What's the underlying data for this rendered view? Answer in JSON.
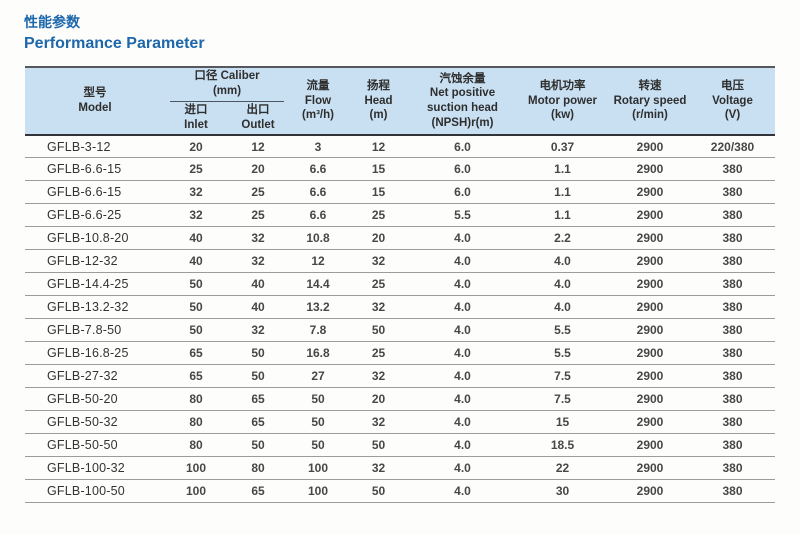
{
  "page": {
    "title_zh": "性能参数",
    "title_en": "Performance Parameter",
    "accent_color": "#1d67ab",
    "header_bg": "#c9e0f2"
  },
  "table": {
    "header": {
      "model": {
        "zh": "型号",
        "en": "Model"
      },
      "caliber": {
        "label": "口径 Caliber",
        "unit": "(mm)"
      },
      "inlet": {
        "zh": "进口",
        "en": "Inlet"
      },
      "outlet": {
        "zh": "出口",
        "en": "Outlet"
      },
      "flow": {
        "zh": "流量",
        "en": "Flow",
        "unit": "(m³/h)"
      },
      "head": {
        "zh": "扬程",
        "en": "Head",
        "unit": "(m)"
      },
      "npsh": {
        "zh": "汽蚀余量",
        "en1": "Net positive",
        "en2": "suction head",
        "unit": "(NPSH)r(m)"
      },
      "motor": {
        "zh": "电机功率",
        "en": "Motor power",
        "unit": "(kw)"
      },
      "speed": {
        "zh": "转速",
        "en": "Rotary speed",
        "unit": "(r/min)"
      },
      "voltage": {
        "zh": "电压",
        "en": "Voltage",
        "unit": "(V)"
      }
    },
    "column_keys": [
      "model",
      "inlet",
      "outlet",
      "flow",
      "head",
      "npsh",
      "motor-power",
      "rotary-speed",
      "voltage"
    ],
    "rows": [
      [
        "GFLB-3-12",
        "20",
        "12",
        "3",
        "12",
        "6.0",
        "0.37",
        "2900",
        "220/380"
      ],
      [
        "GFLB-6.6-15",
        "25",
        "20",
        "6.6",
        "15",
        "6.0",
        "1.1",
        "2900",
        "380"
      ],
      [
        "GFLB-6.6-15",
        "32",
        "25",
        "6.6",
        "15",
        "6.0",
        "1.1",
        "2900",
        "380"
      ],
      [
        "GFLB-6.6-25",
        "32",
        "25",
        "6.6",
        "25",
        "5.5",
        "1.1",
        "2900",
        "380"
      ],
      [
        "GFLB-10.8-20",
        "40",
        "32",
        "10.8",
        "20",
        "4.0",
        "2.2",
        "2900",
        "380"
      ],
      [
        "GFLB-12-32",
        "40",
        "32",
        "12",
        "32",
        "4.0",
        "4.0",
        "2900",
        "380"
      ],
      [
        "GFLB-14.4-25",
        "50",
        "40",
        "14.4",
        "25",
        "4.0",
        "4.0",
        "2900",
        "380"
      ],
      [
        "GFLB-13.2-32",
        "50",
        "40",
        "13.2",
        "32",
        "4.0",
        "4.0",
        "2900",
        "380"
      ],
      [
        "GFLB-7.8-50",
        "50",
        "32",
        "7.8",
        "50",
        "4.0",
        "5.5",
        "2900",
        "380"
      ],
      [
        "GFLB-16.8-25",
        "65",
        "50",
        "16.8",
        "25",
        "4.0",
        "5.5",
        "2900",
        "380"
      ],
      [
        "GFLB-27-32",
        "65",
        "50",
        "27",
        "32",
        "4.0",
        "7.5",
        "2900",
        "380"
      ],
      [
        "GFLB-50-20",
        "80",
        "65",
        "50",
        "20",
        "4.0",
        "7.5",
        "2900",
        "380"
      ],
      [
        "GFLB-50-32",
        "80",
        "65",
        "50",
        "32",
        "4.0",
        "15",
        "2900",
        "380"
      ],
      [
        "GFLB-50-50",
        "80",
        "50",
        "50",
        "50",
        "4.0",
        "18.5",
        "2900",
        "380"
      ],
      [
        "GFLB-100-32",
        "100",
        "80",
        "100",
        "32",
        "4.0",
        "22",
        "2900",
        "380"
      ],
      [
        "GFLB-100-50",
        "100",
        "65",
        "100",
        "50",
        "4.0",
        "30",
        "2900",
        "380"
      ]
    ]
  }
}
